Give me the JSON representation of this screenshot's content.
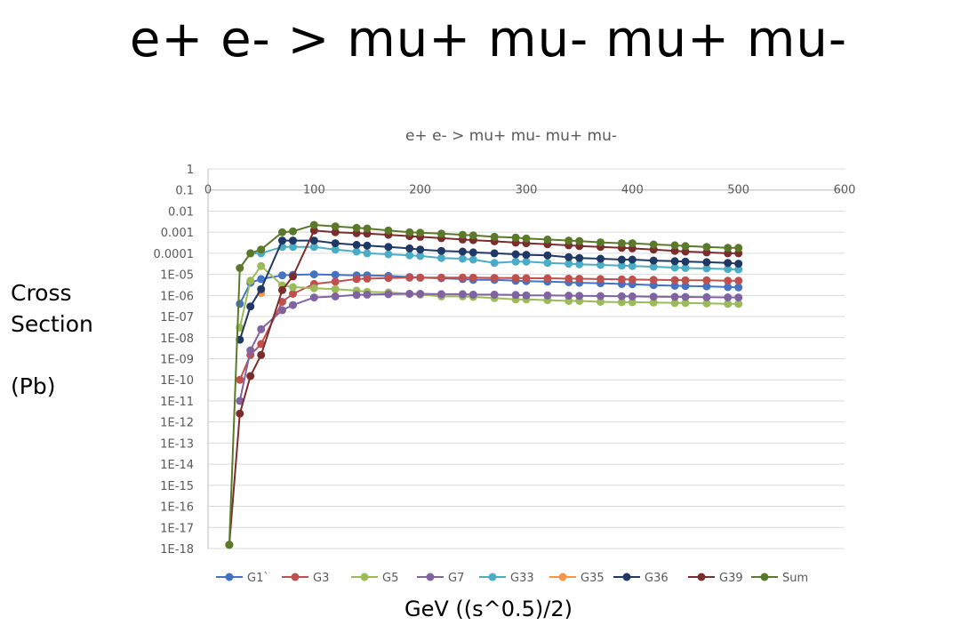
{
  "page": {
    "title": "e+ e- > mu+ mu- mu+ mu-",
    "ylabel_lines": [
      "Cross",
      "Section",
      "",
      "(Pb)"
    ],
    "xlabel": "GeV ((s^0.5)/2)"
  },
  "chart_data": {
    "type": "line",
    "title": "e+ e- > mu+ mu- mu+ mu-",
    "xlabel": "GeV ((s^0.5)/2)",
    "ylabel": "Cross Section (Pb)",
    "xlim": [
      0,
      600
    ],
    "xticks": [
      0,
      100,
      200,
      300,
      400,
      500,
      600
    ],
    "ylim": [
      1e-18,
      1
    ],
    "yscale": "log",
    "ytick_labels": [
      "1",
      "0.1",
      "0.01",
      "0.001",
      "0.0001",
      "1E-05",
      "1E-06",
      "1E-07",
      "1E-08",
      "1E-09",
      "1E-10",
      "1E-11",
      "1E-12",
      "1E-13",
      "1E-14",
      "1E-15",
      "1E-16",
      "1E-17",
      "1E-18"
    ],
    "grid": "horizontal",
    "legend_position": "bottom",
    "series": [
      {
        "name": "G1`",
        "color": "#4472C4",
        "x": [
          30,
          40,
          50,
          70,
          80,
          100,
          120,
          140,
          150,
          170,
          190,
          200,
          220,
          240,
          250,
          270,
          290,
          300,
          320,
          340,
          350,
          370,
          390,
          400,
          420,
          440,
          450,
          470,
          490,
          500
        ],
        "y": [
          4e-07,
          4e-06,
          6e-06,
          9e-06,
          9.5e-06,
          1e-05,
          9.5e-06,
          9e-06,
          9e-06,
          8.5e-06,
          7.5e-06,
          7e-06,
          6.5e-06,
          6e-06,
          5.5e-06,
          5.5e-06,
          5e-06,
          4.8e-06,
          4.5e-06,
          4.2e-06,
          4e-06,
          3.8e-06,
          3.5e-06,
          3.4e-06,
          3.1e-06,
          2.9e-06,
          2.8e-06,
          2.7e-06,
          2.5e-06,
          2.4e-06
        ]
      },
      {
        "name": "G3",
        "color": "#C0504D",
        "x": [
          30,
          40,
          50,
          70,
          80,
          100,
          120,
          140,
          150,
          170,
          190,
          200,
          220,
          240,
          250,
          270,
          290,
          300,
          320,
          340,
          350,
          370,
          390,
          400,
          420,
          440,
          450,
          470,
          490,
          500
        ],
        "y": [
          1e-10,
          1.5e-09,
          5e-09,
          5e-07,
          1.2e-06,
          3.5e-06,
          4.5e-06,
          6e-06,
          6.3e-06,
          6.7e-06,
          7e-06,
          7e-06,
          7e-06,
          7e-06,
          7e-06,
          6.8e-06,
          6.7e-06,
          6.6e-06,
          6.5e-06,
          6.3e-06,
          6.2e-06,
          6e-06,
          5.8e-06,
          5.7e-06,
          5.5e-06,
          5.4e-06,
          5.3e-06,
          5.2e-06,
          5e-06,
          5e-06
        ]
      },
      {
        "name": "G5",
        "color": "#9BBB59",
        "x": [
          30,
          40,
          50,
          70,
          80,
          100,
          120,
          140,
          150,
          170,
          190,
          200,
          220,
          240,
          250,
          270,
          290,
          300,
          320,
          340,
          350,
          370,
          390,
          400,
          420,
          440,
          450,
          470,
          490,
          500
        ],
        "y": [
          3e-08,
          5e-06,
          2.5e-05,
          3e-06,
          2.5e-06,
          2.2e-06,
          2e-06,
          1.7e-06,
          1.5e-06,
          1.4e-06,
          1.2e-06,
          1.1e-06,
          9e-07,
          9e-07,
          8.5e-07,
          7.5e-07,
          6.5e-07,
          6.5e-07,
          6e-07,
          5.5e-07,
          5.5e-07,
          5e-07,
          4.8e-07,
          4.8e-07,
          4.6e-07,
          4.4e-07,
          4.4e-07,
          4.2e-07,
          4e-07,
          4e-07
        ]
      },
      {
        "name": "G7",
        "color": "#8064A2",
        "x": [
          30,
          40,
          50,
          70,
          80,
          100,
          120,
          140,
          150,
          170,
          190,
          200,
          220,
          240,
          250,
          270,
          290,
          300,
          320,
          340,
          350,
          370,
          390,
          400,
          420,
          440,
          450,
          470,
          490,
          500
        ],
        "y": [
          1e-11,
          2.5e-09,
          2.5e-08,
          2e-07,
          3.5e-07,
          8e-07,
          9e-07,
          1.05e-06,
          1.1e-06,
          1.15e-06,
          1.2e-06,
          1.2e-06,
          1.15e-06,
          1.15e-06,
          1.1e-06,
          1.1e-06,
          1.05e-06,
          1e-06,
          1e-06,
          9.8e-07,
          9.6e-07,
          9.4e-07,
          9.2e-07,
          9e-07,
          8.8e-07,
          8.6e-07,
          8.5e-07,
          8.3e-07,
          8.1e-07,
          8e-07
        ]
      },
      {
        "name": "G33",
        "color": "#4BACC6",
        "x": [
          40,
          50,
          70,
          80,
          100,
          120,
          140,
          150,
          170,
          190,
          200,
          220,
          240,
          250,
          270,
          290,
          300,
          320,
          340,
          350,
          370,
          390,
          400,
          420,
          440,
          450,
          470,
          490,
          500
        ],
        "y": [
          0.0001,
          0.0001,
          0.0002,
          0.0002,
          0.0002,
          0.00015,
          0.00012,
          0.0001,
          9e-05,
          8e-05,
          7.5e-05,
          6e-05,
          5.5e-05,
          5e-05,
          3.5e-05,
          4e-05,
          4e-05,
          3.5e-05,
          3.2e-05,
          3e-05,
          2.8e-05,
          2.6e-05,
          2.5e-05,
          2.3e-05,
          2.1e-05,
          2e-05,
          1.9e-05,
          1.8e-05,
          1.7e-05
        ]
      },
      {
        "name": "G35",
        "color": "#F79646",
        "x": [
          50
        ],
        "y": [
          1.3e-06
        ]
      },
      {
        "name": "G36",
        "color": "#1F3864",
        "x": [
          30,
          40,
          50,
          70,
          80,
          100,
          120,
          140,
          150,
          170,
          190,
          200,
          220,
          240,
          250,
          270,
          290,
          300,
          320,
          340,
          350,
          370,
          390,
          400,
          420,
          440,
          450,
          470,
          490,
          500
        ],
        "y": [
          8e-09,
          3e-07,
          2e-06,
          0.0004,
          0.0004,
          0.0004,
          0.0003,
          0.00025,
          0.00023,
          0.0002,
          0.00017,
          0.00015,
          0.00013,
          0.00012,
          0.00011,
          0.0001,
          9e-05,
          8.5e-05,
          8e-05,
          6.5e-05,
          6e-05,
          5.5e-05,
          5e-05,
          5e-05,
          4.5e-05,
          4.2e-05,
          4e-05,
          3.8e-05,
          3.5e-05,
          3.2e-05
        ]
      },
      {
        "name": "G39",
        "color": "#7B2C2C",
        "x": [
          20,
          30,
          40,
          50,
          70,
          80,
          100,
          120,
          140,
          150,
          170,
          190,
          200,
          220,
          240,
          250,
          270,
          290,
          300,
          320,
          340,
          350,
          370,
          390,
          400,
          420,
          440,
          450,
          470,
          490,
          500
        ],
        "y": [
          1.5e-18,
          2.5e-12,
          1.5e-10,
          1.5e-09,
          1.8e-06,
          8e-06,
          0.0012,
          0.001,
          0.0009,
          0.00085,
          0.00075,
          0.00065,
          0.0006,
          0.00052,
          0.00045,
          0.00042,
          0.00037,
          0.00032,
          0.0003,
          0.00027,
          0.00024,
          0.00022,
          0.0002,
          0.00018,
          0.00017,
          0.00015,
          0.00013,
          0.00012,
          0.00011,
          0.0001,
          0.0001
        ]
      },
      {
        "name": "Sum",
        "color": "#5A7A2A",
        "x": [
          20,
          30,
          40,
          50,
          70,
          80,
          100,
          120,
          140,
          150,
          170,
          190,
          200,
          220,
          240,
          250,
          270,
          290,
          300,
          320,
          340,
          350,
          370,
          390,
          400,
          420,
          440,
          450,
          470,
          490,
          500
        ],
        "y": [
          1.5e-18,
          2e-05,
          0.0001,
          0.00015,
          0.001,
          0.0011,
          0.0022,
          0.0019,
          0.0016,
          0.0015,
          0.0012,
          0.001,
          0.00095,
          0.00085,
          0.00075,
          0.0007,
          0.0006,
          0.00055,
          0.0005,
          0.00045,
          0.0004,
          0.00038,
          0.00033,
          0.0003,
          0.0003,
          0.00026,
          0.00024,
          0.00022,
          0.0002,
          0.00018,
          0.00018
        ]
      }
    ]
  }
}
